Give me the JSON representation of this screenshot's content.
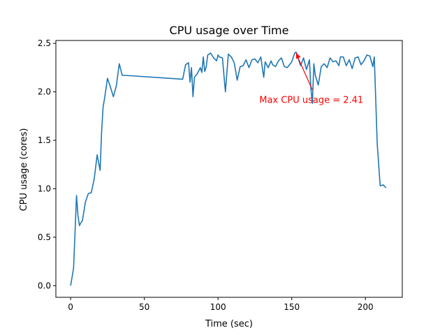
{
  "chart_data": {
    "type": "line",
    "title": "CPU usage over Time",
    "xlabel": "Time (sec)",
    "ylabel": "CPU usage (cores)",
    "xlim": [
      -10,
      225
    ],
    "ylim": [
      -0.12,
      2.53
    ],
    "xticks": [
      0,
      50,
      100,
      150,
      200
    ],
    "xtick_labels": [
      "0",
      "50",
      "100",
      "150",
      "200"
    ],
    "yticks": [
      0.0,
      0.5,
      1.0,
      1.5,
      2.0,
      2.5
    ],
    "ytick_labels": [
      "0.0",
      "0.5",
      "1.0",
      "1.5",
      "2.0",
      "2.5"
    ],
    "grid": false,
    "line_color": "#1f77b4",
    "series": [
      {
        "x": [
          0,
          2,
          3,
          4,
          5,
          6,
          7,
          8,
          10,
          12,
          14,
          16,
          18,
          20,
          21,
          22,
          23,
          25,
          27,
          29,
          31,
          33,
          35,
          36,
          37,
          76,
          78,
          80,
          81,
          82,
          83,
          84,
          86,
          88,
          89,
          90,
          91,
          92,
          93,
          95,
          97,
          99,
          100,
          101,
          103,
          105,
          107,
          109,
          111,
          113,
          115,
          117,
          119,
          121,
          123,
          125,
          127,
          129,
          131,
          132,
          134,
          136,
          137,
          139,
          141,
          143,
          145,
          147,
          149,
          150,
          152,
          153,
          156,
          158,
          160,
          162,
          163,
          164,
          165,
          166,
          168,
          170,
          172,
          174,
          176,
          178,
          180,
          182,
          183,
          185,
          187,
          189,
          191,
          193,
          195,
          197,
          199,
          201,
          203,
          205,
          206,
          208,
          210,
          212,
          214
        ],
        "y": [
          0.0,
          0.18,
          0.55,
          0.93,
          0.72,
          0.62,
          0.65,
          0.67,
          0.86,
          0.95,
          0.96,
          1.1,
          1.35,
          1.19,
          1.58,
          1.84,
          1.93,
          2.14,
          2.05,
          1.95,
          2.06,
          2.29,
          2.17,
          2.17,
          2.17,
          2.13,
          2.28,
          2.3,
          2.1,
          2.25,
          1.95,
          2.15,
          2.19,
          2.25,
          2.2,
          2.36,
          2.21,
          2.26,
          2.38,
          2.4,
          2.35,
          2.32,
          2.38,
          2.36,
          2.35,
          2.0,
          2.39,
          2.36,
          2.3,
          2.12,
          2.26,
          2.27,
          2.33,
          2.25,
          2.33,
          2.34,
          2.3,
          2.36,
          2.15,
          2.31,
          2.25,
          2.32,
          2.28,
          2.26,
          2.32,
          2.35,
          2.26,
          2.25,
          2.29,
          2.31,
          2.4,
          2.41,
          2.27,
          2.35,
          2.23,
          2.33,
          2.03,
          1.88,
          2.29,
          2.17,
          2.07,
          2.26,
          2.29,
          2.25,
          2.35,
          2.31,
          2.32,
          2.27,
          2.36,
          2.36,
          2.27,
          2.33,
          2.24,
          2.35,
          2.36,
          2.28,
          2.32,
          2.38,
          2.37,
          2.26,
          2.36,
          1.46,
          1.03,
          1.04,
          1.01
        ]
      }
    ],
    "annotation": {
      "text": "Max CPU usage = 2.41",
      "color": "#ff0000",
      "point_x": 153,
      "point_y": 2.41,
      "text_x": 128,
      "text_y": 1.92
    }
  }
}
